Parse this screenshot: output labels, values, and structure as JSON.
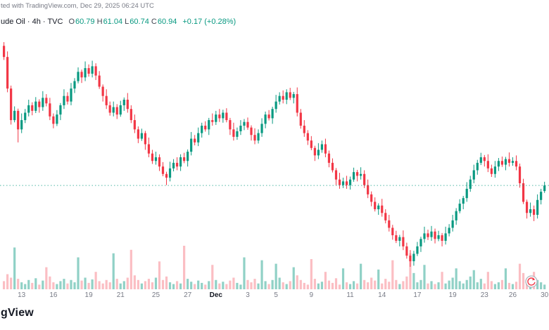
{
  "attribution": "ted with TradingView.com, Dec 29, 2025 06:24 UTC",
  "symbol_row": {
    "symbol": "ude Oil · 4h · TVC",
    "ohlc": [
      {
        "label": "O",
        "value": "60.79"
      },
      {
        "label": "H",
        "value": "61.04"
      },
      {
        "label": "L",
        "value": "60.74"
      },
      {
        "label": "C",
        "value": "60.94"
      }
    ],
    "change": "+0.17 (+0.28%)"
  },
  "logo": "gView",
  "colors": {
    "up": "#089981",
    "down": "#f23645",
    "vol_up": "rgba(8,153,129,0.45)",
    "vol_down": "rgba(242,54,69,0.32)",
    "text_dark": "#131722",
    "text_gray": "#787b86"
  },
  "chart_data": {
    "type": "candlestick",
    "interval": "4h",
    "exchange": "TVC",
    "ohlc_last": {
      "open": 60.79,
      "high": 61.04,
      "low": 60.74,
      "close": 60.94,
      "change": "+0.17 (+0.28%)"
    },
    "price_line": 60.94,
    "y_range_approx": [
      58.75,
      64.8
    ],
    "x_ticks": [
      {
        "label": "13",
        "i": 5
      },
      {
        "label": "16",
        "i": 14
      },
      {
        "label": "19",
        "i": 24
      },
      {
        "label": "21",
        "i": 33
      },
      {
        "label": "25",
        "i": 43
      },
      {
        "label": "27",
        "i": 52
      },
      {
        "label": "Dec",
        "i": 60
      },
      {
        "label": "3",
        "i": 69
      },
      {
        "label": "5",
        "i": 77
      },
      {
        "label": "9",
        "i": 87
      },
      {
        "label": "11",
        "i": 98
      },
      {
        "label": "14",
        "i": 107
      },
      {
        "label": "17",
        "i": 117
      },
      {
        "label": "19",
        "i": 127
      },
      {
        "label": "23",
        "i": 136
      },
      {
        "label": "26",
        "i": 144
      },
      {
        "label": "30",
        "i": 153
      }
    ],
    "candles": [
      [
        64.7,
        64.8,
        64.32,
        64.4
      ],
      [
        64.4,
        64.55,
        63.45,
        63.55
      ],
      [
        63.55,
        63.63,
        62.58,
        62.7
      ],
      [
        62.7,
        63.07,
        62.64,
        62.95
      ],
      [
        62.95,
        63.01,
        62.1,
        62.45
      ],
      [
        62.45,
        62.88,
        62.35,
        62.7
      ],
      [
        62.7,
        63.0,
        62.62,
        62.9
      ],
      [
        62.9,
        63.25,
        62.8,
        63.1
      ],
      [
        63.1,
        63.18,
        62.83,
        62.95
      ],
      [
        62.95,
        63.32,
        62.89,
        63.2
      ],
      [
        63.2,
        63.26,
        62.9,
        63.05
      ],
      [
        63.05,
        63.48,
        62.95,
        63.3
      ],
      [
        63.3,
        63.4,
        63.07,
        63.15
      ],
      [
        63.15,
        63.3,
        62.7,
        62.8
      ],
      [
        62.8,
        62.88,
        62.48,
        62.6
      ],
      [
        62.6,
        62.97,
        62.54,
        62.85
      ],
      [
        62.85,
        63.16,
        62.7,
        63.1
      ],
      [
        63.1,
        63.53,
        63.0,
        63.35
      ],
      [
        63.35,
        63.45,
        63.12,
        63.2
      ],
      [
        63.2,
        63.7,
        63.1,
        63.55
      ],
      [
        63.55,
        63.83,
        63.43,
        63.75
      ],
      [
        63.75,
        64.12,
        63.69,
        64.0
      ],
      [
        64.0,
        64.06,
        63.7,
        63.85
      ],
      [
        63.85,
        64.28,
        63.75,
        64.1
      ],
      [
        64.1,
        64.2,
        63.87,
        63.95
      ],
      [
        63.95,
        64.3,
        63.85,
        64.15
      ],
      [
        64.15,
        64.23,
        63.78,
        63.9
      ],
      [
        63.9,
        64.02,
        63.54,
        63.6
      ],
      [
        63.6,
        63.66,
        63.2,
        63.35
      ],
      [
        63.35,
        63.53,
        63.0,
        63.1
      ],
      [
        63.1,
        63.2,
        62.82,
        62.9
      ],
      [
        62.9,
        63.2,
        62.8,
        63.05
      ],
      [
        63.05,
        63.13,
        62.73,
        62.85
      ],
      [
        62.85,
        63.22,
        62.79,
        63.1
      ],
      [
        63.1,
        63.31,
        62.95,
        63.25
      ],
      [
        63.25,
        63.43,
        62.9,
        63.0
      ],
      [
        63.0,
        63.1,
        62.62,
        62.7
      ],
      [
        62.7,
        62.85,
        62.35,
        62.45
      ],
      [
        62.45,
        62.53,
        62.08,
        62.2
      ],
      [
        62.2,
        62.47,
        62.14,
        62.35
      ],
      [
        62.35,
        62.41,
        61.9,
        62.05
      ],
      [
        62.05,
        62.23,
        61.7,
        61.8
      ],
      [
        61.8,
        61.9,
        61.52,
        61.6
      ],
      [
        61.6,
        61.85,
        61.5,
        61.7
      ],
      [
        61.7,
        61.78,
        61.33,
        61.45
      ],
      [
        61.45,
        61.57,
        61.19,
        61.25
      ],
      [
        61.25,
        61.31,
        60.95,
        61.15
      ],
      [
        61.15,
        61.58,
        61.05,
        61.4
      ],
      [
        61.4,
        61.65,
        61.32,
        61.55
      ],
      [
        61.55,
        61.7,
        61.35,
        61.45
      ],
      [
        61.45,
        61.78,
        61.33,
        61.7
      ],
      [
        61.7,
        61.82,
        61.54,
        61.6
      ],
      [
        61.6,
        61.91,
        61.45,
        61.85
      ],
      [
        61.85,
        62.38,
        61.75,
        62.2
      ],
      [
        62.2,
        62.3,
        62.02,
        62.1
      ],
      [
        62.1,
        62.5,
        62.0,
        62.35
      ],
      [
        62.35,
        62.63,
        62.23,
        62.55
      ],
      [
        62.55,
        62.67,
        62.39,
        62.45
      ],
      [
        62.45,
        62.76,
        62.3,
        62.7
      ],
      [
        62.7,
        62.88,
        62.55,
        62.65
      ],
      [
        62.65,
        62.95,
        62.57,
        62.85
      ],
      [
        62.85,
        63.0,
        62.65,
        62.75
      ],
      [
        62.75,
        62.98,
        62.63,
        62.9
      ],
      [
        62.9,
        63.02,
        62.64,
        62.7
      ],
      [
        62.7,
        62.76,
        62.3,
        62.45
      ],
      [
        62.45,
        62.63,
        62.15,
        62.25
      ],
      [
        62.25,
        62.5,
        62.17,
        62.4
      ],
      [
        62.4,
        62.7,
        62.3,
        62.55
      ],
      [
        62.55,
        62.73,
        62.43,
        62.65
      ],
      [
        62.65,
        62.77,
        62.44,
        62.5
      ],
      [
        62.5,
        62.56,
        62.15,
        62.3
      ],
      [
        62.3,
        62.48,
        62.05,
        62.15
      ],
      [
        62.15,
        62.45,
        62.07,
        62.35
      ],
      [
        62.35,
        62.75,
        62.25,
        62.6
      ],
      [
        62.6,
        62.93,
        62.48,
        62.85
      ],
      [
        62.85,
        62.97,
        62.69,
        62.75
      ],
      [
        62.75,
        63.06,
        62.6,
        63.0
      ],
      [
        63.0,
        63.38,
        62.9,
        63.2
      ],
      [
        63.2,
        63.45,
        63.12,
        63.35
      ],
      [
        63.35,
        63.5,
        63.15,
        63.25
      ],
      [
        63.25,
        63.53,
        63.13,
        63.45
      ],
      [
        63.45,
        63.57,
        63.24,
        63.3
      ],
      [
        63.3,
        63.46,
        63.15,
        63.4
      ],
      [
        63.4,
        63.58,
        62.8,
        62.9
      ],
      [
        62.9,
        63.0,
        62.47,
        62.55
      ],
      [
        62.55,
        62.7,
        62.25,
        62.35
      ],
      [
        62.35,
        62.43,
        62.03,
        62.15
      ],
      [
        62.15,
        62.27,
        61.89,
        61.95
      ],
      [
        61.95,
        62.01,
        61.6,
        61.75
      ],
      [
        61.75,
        62.08,
        61.65,
        61.9
      ],
      [
        61.9,
        62.15,
        61.82,
        62.05
      ],
      [
        62.05,
        62.2,
        61.7,
        61.8
      ],
      [
        61.8,
        61.88,
        61.43,
        61.55
      ],
      [
        61.55,
        61.67,
        61.29,
        61.35
      ],
      [
        61.35,
        61.41,
        60.95,
        61.1
      ],
      [
        61.1,
        61.28,
        60.85,
        60.95
      ],
      [
        60.95,
        61.15,
        60.87,
        61.05
      ],
      [
        61.05,
        61.2,
        60.85,
        60.95
      ],
      [
        60.95,
        61.18,
        60.83,
        61.1
      ],
      [
        61.1,
        61.42,
        61.04,
        61.3
      ],
      [
        61.3,
        61.36,
        61.05,
        61.2
      ],
      [
        61.2,
        61.43,
        61.1,
        61.25
      ],
      [
        61.25,
        61.35,
        60.87,
        60.95
      ],
      [
        60.95,
        61.1,
        60.6,
        60.7
      ],
      [
        60.7,
        60.78,
        60.38,
        60.5
      ],
      [
        60.5,
        60.62,
        60.24,
        60.3
      ],
      [
        60.3,
        60.46,
        60.15,
        60.4
      ],
      [
        60.4,
        60.58,
        60.1,
        60.2
      ],
      [
        60.2,
        60.3,
        59.92,
        60.0
      ],
      [
        60.0,
        60.15,
        59.7,
        59.8
      ],
      [
        59.8,
        59.88,
        59.48,
        59.6
      ],
      [
        59.6,
        59.72,
        59.39,
        59.45
      ],
      [
        59.45,
        59.61,
        59.3,
        59.55
      ],
      [
        59.55,
        59.73,
        59.2,
        59.3
      ],
      [
        59.3,
        59.4,
        58.97,
        59.05
      ],
      [
        59.05,
        59.2,
        58.75,
        58.9
      ],
      [
        58.9,
        59.18,
        58.78,
        59.1
      ],
      [
        59.1,
        59.42,
        59.04,
        59.3
      ],
      [
        59.3,
        59.56,
        59.15,
        59.5
      ],
      [
        59.5,
        59.83,
        59.4,
        59.65
      ],
      [
        59.65,
        59.75,
        59.47,
        59.55
      ],
      [
        59.55,
        59.85,
        59.45,
        59.7
      ],
      [
        59.7,
        59.78,
        59.38,
        59.5
      ],
      [
        59.5,
        59.72,
        59.44,
        59.6
      ],
      [
        59.6,
        59.66,
        59.3,
        59.45
      ],
      [
        59.45,
        59.83,
        59.35,
        59.65
      ],
      [
        59.65,
        59.9,
        59.57,
        59.8
      ],
      [
        59.8,
        60.15,
        59.7,
        60.0
      ],
      [
        60.0,
        60.33,
        59.88,
        60.25
      ],
      [
        60.25,
        60.57,
        60.19,
        60.45
      ],
      [
        60.45,
        60.66,
        60.3,
        60.6
      ],
      [
        60.6,
        61.03,
        60.5,
        60.85
      ],
      [
        60.85,
        61.2,
        60.77,
        61.1
      ],
      [
        61.1,
        61.5,
        61.0,
        61.35
      ],
      [
        61.35,
        61.63,
        61.23,
        61.55
      ],
      [
        61.55,
        61.82,
        61.49,
        61.7
      ],
      [
        61.7,
        61.76,
        61.45,
        61.6
      ],
      [
        61.6,
        61.78,
        61.3,
        61.4
      ],
      [
        61.4,
        61.5,
        61.17,
        61.25
      ],
      [
        61.25,
        61.6,
        61.15,
        61.45
      ],
      [
        61.45,
        61.68,
        61.33,
        61.6
      ],
      [
        61.6,
        61.72,
        61.44,
        61.5
      ],
      [
        61.5,
        61.71,
        61.35,
        61.65
      ],
      [
        61.65,
        61.83,
        61.45,
        61.55
      ],
      [
        61.55,
        61.7,
        61.47,
        61.6
      ],
      [
        61.6,
        61.75,
        61.35,
        61.45
      ],
      [
        61.45,
        61.53,
        60.88,
        61.0
      ],
      [
        61.0,
        61.12,
        60.44,
        60.5
      ],
      [
        60.5,
        60.56,
        60.05,
        60.2
      ],
      [
        60.2,
        60.48,
        60.1,
        60.3
      ],
      [
        60.3,
        60.4,
        59.98,
        60.15
      ],
      [
        60.15,
        60.7,
        60.05,
        60.55
      ],
      [
        60.55,
        60.85,
        60.43,
        60.77
      ],
      [
        60.79,
        61.04,
        60.74,
        60.94
      ]
    ],
    "volumes": [
      14,
      26,
      20,
      72,
      18,
      12,
      9,
      16,
      11,
      19,
      8,
      15,
      38,
      22,
      12,
      9,
      14,
      18,
      10,
      16,
      12,
      55,
      15,
      20,
      11,
      17,
      30,
      14,
      10,
      16,
      12,
      62,
      18,
      10,
      14,
      20,
      68,
      24,
      16,
      10,
      14,
      18,
      12,
      20,
      48,
      16,
      22,
      12,
      9,
      14,
      10,
      75,
      18,
      13,
      9,
      15,
      11,
      8,
      14,
      42,
      16,
      10,
      13,
      9,
      15,
      20,
      11,
      8,
      55,
      16,
      12,
      18,
      10,
      50,
      14,
      9,
      16,
      44,
      20,
      12,
      9,
      14,
      38,
      24,
      16,
      11,
      8,
      52,
      18,
      10,
      13,
      30,
      15,
      11,
      19,
      8,
      36,
      12,
      9,
      14,
      10,
      44,
      16,
      12,
      20,
      15,
      34,
      10,
      18,
      13,
      50,
      16,
      9,
      14,
      22,
      62,
      28,
      12,
      16,
      42,
      10,
      14,
      9,
      12,
      30,
      10,
      15,
      20,
      36,
      14,
      10,
      16,
      22,
      33,
      12,
      18,
      10,
      30,
      14,
      9,
      12,
      16,
      36,
      11,
      9,
      13,
      44,
      28,
      18,
      12,
      30,
      16,
      12,
      8
    ]
  }
}
